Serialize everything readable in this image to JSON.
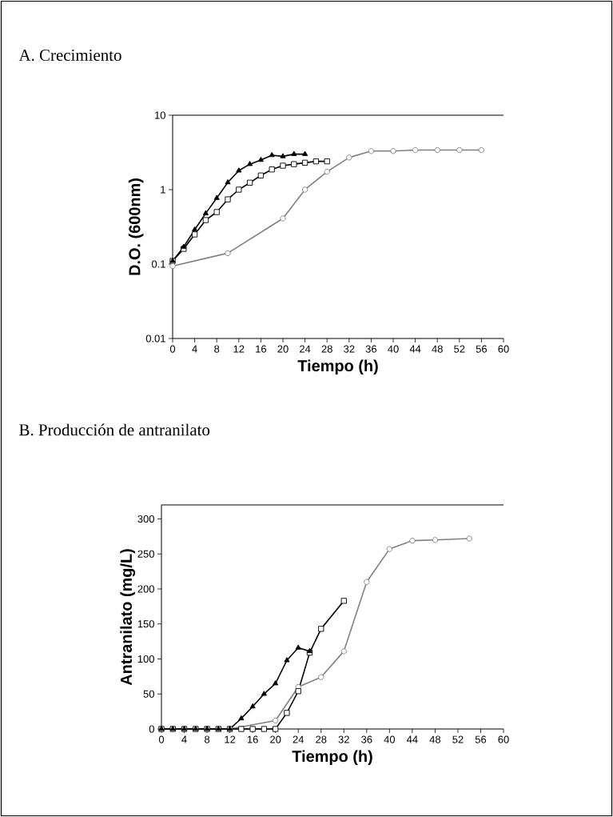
{
  "chart_data": [
    {
      "type": "line",
      "title": "A. Crecimiento",
      "xlabel": "Tiempo (h)",
      "ylabel": "D.O. (600nm)",
      "log": "y",
      "grid": false,
      "xlim": [
        0,
        60
      ],
      "xticks": [
        0,
        4,
        8,
        12,
        16,
        20,
        24,
        28,
        32,
        36,
        40,
        44,
        48,
        52,
        56,
        60
      ],
      "ylim": [
        0.01,
        10
      ],
      "yticks": [
        0.01,
        0.1,
        1,
        10
      ],
      "series": [
        {
          "color": "#000000",
          "marker": "square",
          "x": [
            0,
            2,
            4,
            6,
            8,
            10,
            12,
            14,
            16,
            18,
            20,
            22,
            24,
            26,
            28
          ],
          "values": [
            0.11,
            0.16,
            0.25,
            0.39,
            0.5,
            0.74,
            1.0,
            1.24,
            1.55,
            1.87,
            2.1,
            2.2,
            2.3,
            2.4,
            2.4
          ]
        },
        {
          "color": "#000000",
          "marker": "triangle",
          "x": [
            0,
            2,
            4,
            6,
            8,
            10,
            12,
            14,
            16,
            18,
            20,
            22,
            24
          ],
          "values": [
            0.11,
            0.17,
            0.29,
            0.48,
            0.77,
            1.25,
            1.8,
            2.2,
            2.5,
            2.9,
            2.8,
            3.0,
            3.0
          ]
        },
        {
          "color": "#808080",
          "marker": "circle",
          "x": [
            0,
            10,
            20,
            24,
            28,
            32,
            36,
            40,
            44,
            48,
            52,
            56
          ],
          "values": [
            0.094,
            0.14,
            0.41,
            1.0,
            1.74,
            2.7,
            3.3,
            3.3,
            3.4,
            3.4,
            3.4,
            3.4
          ]
        }
      ]
    },
    {
      "type": "line",
      "title": "B. Producción de antranilato",
      "xlabel": "Tiempo (h)",
      "ylabel": "Antranilato (mg/L)",
      "grid": false,
      "xlim": [
        0,
        60
      ],
      "xticks": [
        0,
        4,
        8,
        12,
        16,
        20,
        24,
        28,
        32,
        36,
        40,
        44,
        48,
        52,
        56,
        60
      ],
      "ylim": [
        0,
        320
      ],
      "yticks": [
        0,
        50,
        100,
        150,
        200,
        250,
        300
      ],
      "series": [
        {
          "color": "#808080",
          "marker": "circle",
          "x": [
            0,
            4,
            8,
            12,
            20,
            24,
            28,
            32,
            36,
            40,
            44,
            48,
            54
          ],
          "values": [
            0,
            0,
            0,
            0,
            12,
            60,
            74,
            111,
            210,
            257,
            269,
            270,
            272
          ]
        },
        {
          "color": "#000000",
          "marker": "square",
          "x": [
            0,
            2,
            4,
            6,
            8,
            10,
            12,
            14,
            16,
            18,
            20,
            22,
            24,
            26,
            28,
            32
          ],
          "values": [
            0,
            0,
            0,
            0,
            0,
            0,
            0,
            0,
            0,
            0,
            0,
            23,
            54,
            109,
            143,
            183
          ]
        },
        {
          "color": "#000000",
          "marker": "triangle",
          "x": [
            0,
            2,
            4,
            6,
            8,
            10,
            12,
            14,
            16,
            18,
            20,
            22,
            24,
            26
          ],
          "values": [
            0,
            0,
            0,
            0,
            0,
            0,
            0,
            15,
            32,
            50,
            65,
            98,
            116,
            111
          ]
        }
      ]
    }
  ]
}
